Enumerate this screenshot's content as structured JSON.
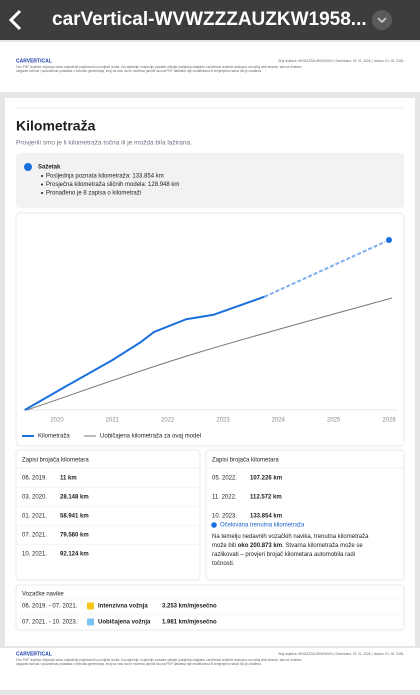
{
  "app_bar": {
    "title": "carVertical-WVWZZZAUZKW1958..."
  },
  "page_header": {
    "logo": "CARVERTICAL",
    "info": "Broj izvješća: WVWZZZAUZKW19520  |  Generirano: 02. 01. 2026.  |  Izdano: 01. 02. 2026.",
    "disclaimer": [
      "Ovo PDF izvješće uključuje samo najvažnije pojedinosti iz povijesti vozila. Za najtočnije i najnovije podatke učitajte posljednju digitalnu carVertical izvješće dostupno na našoj web stranici. Iako se trudimo",
      "osigurati točnost i pouzdanost podataka u trenutku generiranja, imaj na umu da ne možemo jamčiti da ova PDF datoteka nije modificirana ili izmijenjena nakon što je izrađena."
    ]
  },
  "section": {
    "title": "Kilometraža",
    "subtitle": "Provjerili smo je li kilometraža točna ili je možda bila lažirana."
  },
  "summary": {
    "title": "Sažetak",
    "items": [
      "Posljednja poznata kilometraža: 133.854 km",
      "Prosječna kilometraža sličnih modela: 128.948 km",
      "Pronađeno je 8 zapisa o kilometraži"
    ]
  },
  "chart": {
    "xticks": [
      2020,
      2021,
      2022,
      2023,
      2024,
      2025,
      2026
    ],
    "legend": [
      "Kilometraža",
      "Uobičajena kilometraža za ovaj model"
    ]
  },
  "records": {
    "left": {
      "title": "Zapisi brojača kilometara",
      "rows": [
        [
          "06. 2019.",
          "11 km"
        ],
        [
          "03. 2020.",
          "28.148 km"
        ],
        [
          "01. 2021.",
          "58.941 km"
        ],
        [
          "07. 2021.",
          "79.580 km"
        ],
        [
          "10. 2021.",
          "92.124 km"
        ]
      ]
    },
    "right": {
      "title": "Zapisi brojača kilometara",
      "rows": [
        [
          "05. 2022.",
          "107.226 km"
        ],
        [
          "11. 2022.",
          "112.572 km"
        ],
        [
          "10. 2023.",
          "133.854 km"
        ]
      ]
    }
  },
  "expected": {
    "title": "Očekivana trenutna kilometraža",
    "lines": [
      [
        "Na temelju nedavnih vozačkih navika, trenutna kilometraža"
      ],
      [
        "može biti ",
        "oko 200.873 km",
        ". Stvarna kilometraža može se"
      ],
      [
        "razlikovati – provjeri brojač kilometara automobila radi"
      ],
      [
        "točnosti."
      ]
    ]
  },
  "habits": {
    "title": "Vozačke navike",
    "rows": [
      [
        "06. 2019. - 07. 2021.",
        "Intenzivna vožnja",
        "3.253 km/mjesečno"
      ],
      [
        "07. 2021. - 10. 2023.",
        "Uobičajena vožnja",
        "1.981 km/mjesečno"
      ]
    ]
  },
  "page_footer": {
    "logo": "CARVERTICAL",
    "info": "Broj izvješća: WVWZZZAUZKW19520  |  Generirano: 02. 01. 2026.  |  Izdano: 01. 02. 2026.",
    "disclaimer": [
      "Ovo PDF izvješće uključuje samo najvažnije pojedinosti iz povijesti vozila. Za najtočnije i najnovije podatke učitajte posljednju digitalnu carVertical izvješće dostupno na našoj web stranici. Iako se trudimo",
      "osigurati točnost i pouzdanost podataka u trenutku generiranja, imaj na umu da ne možemo jamčiti da ova PDF datoteka nije modificirana ili izmijenjena nakon što je izrađena."
    ]
  }
}
